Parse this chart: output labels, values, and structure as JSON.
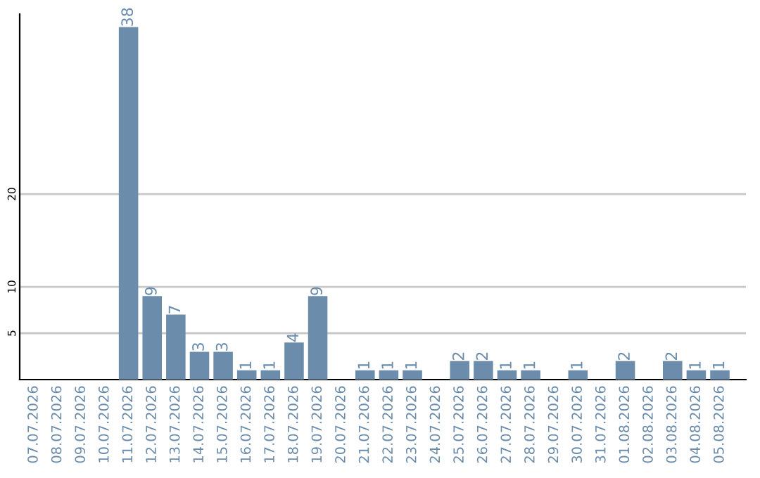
{
  "chart_data": {
    "type": "bar",
    "categories": [
      "07.07.2026",
      "08.07.2026",
      "09.07.2026",
      "10.07.2026",
      "11.07.2026",
      "12.07.2026",
      "13.07.2026",
      "14.07.2026",
      "15.07.2026",
      "16.07.2026",
      "17.07.2026",
      "18.07.2026",
      "19.07.2026",
      "20.07.2026",
      "21.07.2026",
      "22.07.2026",
      "23.07.2026",
      "24.07.2026",
      "25.07.2026",
      "26.07.2026",
      "27.07.2026",
      "28.07.2026",
      "29.07.2026",
      "30.07.2026",
      "31.07.2026",
      "01.08.2026",
      "02.08.2026",
      "03.08.2026",
      "04.08.2026",
      "05.08.2026"
    ],
    "values": [
      0,
      0,
      0,
      0,
      38,
      9,
      7,
      3,
      3,
      1,
      1,
      4,
      9,
      0,
      1,
      1,
      1,
      0,
      2,
      2,
      1,
      1,
      0,
      1,
      0,
      2,
      0,
      2,
      1,
      1
    ],
    "value_labels": [
      null,
      null,
      null,
      null,
      "38",
      "9",
      "7",
      "3",
      "3",
      "1",
      "1",
      "4",
      "9",
      null,
      "1",
      "1",
      "1",
      null,
      "2",
      "2",
      "1",
      "1",
      null,
      "1",
      null,
      "2",
      null,
      "2",
      "1",
      "1"
    ],
    "color": "#6b8cab",
    "ylim": [
      0,
      39.4
    ],
    "yticks": [
      5,
      10,
      20
    ],
    "grid": "y"
  }
}
